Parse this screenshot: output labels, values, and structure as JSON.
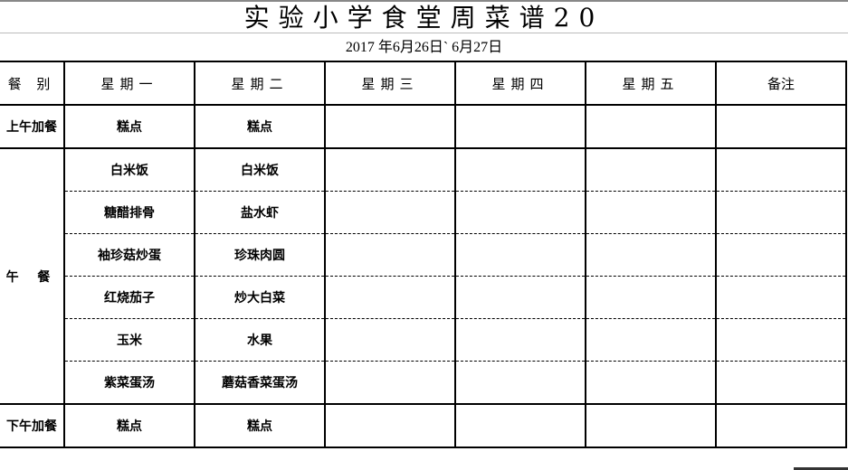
{
  "title": "实验小学食堂周菜谱20",
  "subtitle": "2017 年6月26日` 6月27日",
  "headers": [
    "餐  别",
    "星期一",
    "星期二",
    "星期三",
    "星期四",
    "星期五",
    "备注"
  ],
  "rows": {
    "morning": {
      "label": "上午加餐",
      "mon": "糕点",
      "tue": "糕点"
    },
    "lunch": {
      "label": "午  餐",
      "items": [
        {
          "mon": "白米饭",
          "tue": "白米饭"
        },
        {
          "mon": "糖醋排骨",
          "tue": "盐水虾"
        },
        {
          "mon": "袖珍菇炒蛋",
          "tue": "珍珠肉圆"
        },
        {
          "mon": "红烧茄子",
          "tue": "炒大白菜"
        },
        {
          "mon": "玉米",
          "tue": "水果"
        },
        {
          "mon": "紫菜蛋汤",
          "tue": "蘑菇香菜蛋汤"
        }
      ]
    },
    "afternoon": {
      "label": "下午加餐",
      "mon": "糕点",
      "tue": "糕点"
    }
  }
}
